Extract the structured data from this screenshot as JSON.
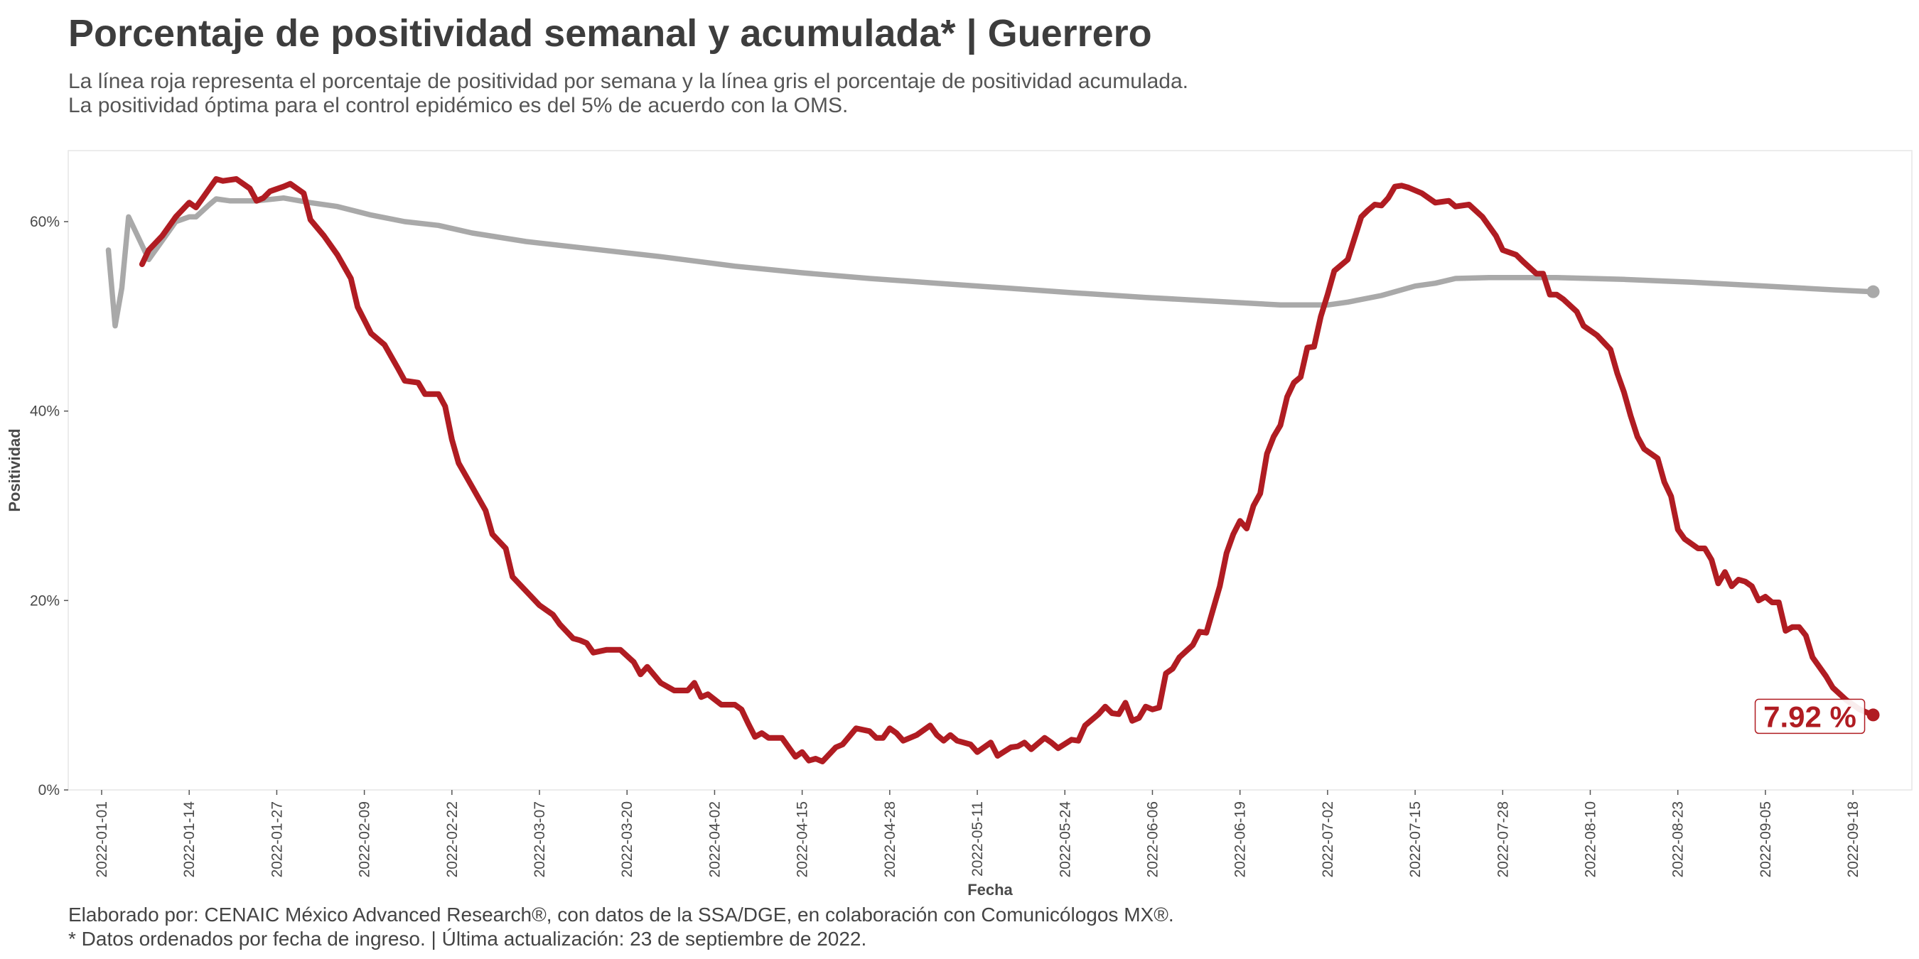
{
  "header": {
    "title": "Porcentaje de positividad semanal y acumulada* | Guerrero",
    "subtitle_line1": "La línea roja representa el porcentaje de positividad por semana y la línea gris el porcentaje de positividad acumulada.",
    "subtitle_line2": "La positividad óptima para el control epidémico es del 5% de acuerdo con la OMS."
  },
  "footer": {
    "caption_line1": "Elaborado por: CENAIC México Advanced Research®, con datos de la SSA/DGE, en colaboración con Comunicólogos MX®.",
    "caption_line2": "* Datos ordenados por fecha de ingreso. | Última actualización: 23 de septiembre de 2022."
  },
  "chart_data": {
    "type": "line",
    "title": "Porcentaje de positividad semanal y acumulada* | Guerrero",
    "xlabel": "Fecha",
    "ylabel": "Positividad",
    "x_start": "2022-01-01",
    "x_end": "2022-09-22",
    "ylim": [
      0,
      0.675
    ],
    "x_ticks": [
      "2022-01-01",
      "2022-01-14",
      "2022-01-27",
      "2022-02-09",
      "2022-02-22",
      "2022-03-07",
      "2022-03-20",
      "2022-04-02",
      "2022-04-15",
      "2022-04-28",
      "2022-05-11",
      "2022-05-24",
      "2022-06-06",
      "2022-06-19",
      "2022-07-02",
      "2022-07-15",
      "2022-07-28",
      "2022-08-10",
      "2022-08-23",
      "2022-09-05",
      "2022-09-18"
    ],
    "y_ticks": [
      {
        "value": 0,
        "label": "0%"
      },
      {
        "value": 0.2,
        "label": "20%"
      },
      {
        "value": 0.4,
        "label": "40%"
      },
      {
        "value": 0.6,
        "label": "60%"
      }
    ],
    "grid": false,
    "series": [
      {
        "role": "semanal",
        "color": "#b01c22",
        "points": [
          [
            "2022-01-07",
            0.555
          ],
          [
            "2022-01-08",
            0.57
          ],
          [
            "2022-01-10",
            0.585
          ],
          [
            "2022-01-12",
            0.605
          ],
          [
            "2022-01-14",
            0.62
          ],
          [
            "2022-01-15",
            0.615
          ],
          [
            "2022-01-16",
            0.625
          ],
          [
            "2022-01-18",
            0.645
          ],
          [
            "2022-01-19",
            0.643
          ],
          [
            "2022-01-20",
            0.644
          ],
          [
            "2022-01-21",
            0.645
          ],
          [
            "2022-01-23",
            0.635
          ],
          [
            "2022-01-24",
            0.622
          ],
          [
            "2022-01-25",
            0.625
          ],
          [
            "2022-01-26",
            0.632
          ],
          [
            "2022-01-28",
            0.637
          ],
          [
            "2022-01-29",
            0.64
          ],
          [
            "2022-01-31",
            0.63
          ],
          [
            "2022-02-01",
            0.602
          ],
          [
            "2022-02-03",
            0.585
          ],
          [
            "2022-02-05",
            0.565
          ],
          [
            "2022-02-07",
            0.54
          ],
          [
            "2022-02-08",
            0.51
          ],
          [
            "2022-02-10",
            0.482
          ],
          [
            "2022-02-12",
            0.47
          ],
          [
            "2022-02-14",
            0.445
          ],
          [
            "2022-02-15",
            0.432
          ],
          [
            "2022-02-17",
            0.43
          ],
          [
            "2022-02-18",
            0.418
          ],
          [
            "2022-02-20",
            0.418
          ],
          [
            "2022-02-21",
            0.405
          ],
          [
            "2022-02-22",
            0.37
          ],
          [
            "2022-02-23",
            0.345
          ],
          [
            "2022-02-25",
            0.32
          ],
          [
            "2022-02-27",
            0.295
          ],
          [
            "2022-02-28",
            0.27
          ],
          [
            "2022-03-02",
            0.255
          ],
          [
            "2022-03-03",
            0.225
          ],
          [
            "2022-03-05",
            0.21
          ],
          [
            "2022-03-07",
            0.195
          ],
          [
            "2022-03-09",
            0.185
          ],
          [
            "2022-03-10",
            0.175
          ],
          [
            "2022-03-12",
            0.16
          ],
          [
            "2022-03-13",
            0.158
          ],
          [
            "2022-03-14",
            0.155
          ],
          [
            "2022-03-15",
            0.145
          ],
          [
            "2022-03-17",
            0.148
          ],
          [
            "2022-03-19",
            0.148
          ],
          [
            "2022-03-21",
            0.135
          ],
          [
            "2022-03-22",
            0.122
          ],
          [
            "2022-03-23",
            0.13
          ],
          [
            "2022-03-25",
            0.113
          ],
          [
            "2022-03-27",
            0.105
          ],
          [
            "2022-03-29",
            0.105
          ],
          [
            "2022-03-30",
            0.113
          ],
          [
            "2022-03-31",
            0.098
          ],
          [
            "2022-04-01",
            0.101
          ],
          [
            "2022-04-03",
            0.09
          ],
          [
            "2022-04-05",
            0.09
          ],
          [
            "2022-04-06",
            0.085
          ],
          [
            "2022-04-07",
            0.07
          ],
          [
            "2022-04-08",
            0.056
          ],
          [
            "2022-04-09",
            0.06
          ],
          [
            "2022-04-10",
            0.055
          ],
          [
            "2022-04-12",
            0.055
          ],
          [
            "2022-04-14",
            0.035
          ],
          [
            "2022-04-15",
            0.04
          ],
          [
            "2022-04-16",
            0.031
          ],
          [
            "2022-04-17",
            0.033
          ],
          [
            "2022-04-18",
            0.03
          ],
          [
            "2022-04-20",
            0.045
          ],
          [
            "2022-04-21",
            0.048
          ],
          [
            "2022-04-23",
            0.065
          ],
          [
            "2022-04-25",
            0.062
          ],
          [
            "2022-04-26",
            0.055
          ],
          [
            "2022-04-27",
            0.055
          ],
          [
            "2022-04-28",
            0.065
          ],
          [
            "2022-04-29",
            0.06
          ],
          [
            "2022-04-30",
            0.052
          ],
          [
            "2022-05-02",
            0.058
          ],
          [
            "2022-05-04",
            0.068
          ],
          [
            "2022-05-05",
            0.058
          ],
          [
            "2022-05-06",
            0.052
          ],
          [
            "2022-05-07",
            0.058
          ],
          [
            "2022-05-08",
            0.052
          ],
          [
            "2022-05-10",
            0.048
          ],
          [
            "2022-05-11",
            0.04
          ],
          [
            "2022-05-13",
            0.05
          ],
          [
            "2022-05-14",
            0.036
          ],
          [
            "2022-05-16",
            0.045
          ],
          [
            "2022-05-17",
            0.046
          ],
          [
            "2022-05-18",
            0.05
          ],
          [
            "2022-05-19",
            0.043
          ],
          [
            "2022-05-21",
            0.055
          ],
          [
            "2022-05-22",
            0.05
          ],
          [
            "2022-05-23",
            0.044
          ],
          [
            "2022-05-25",
            0.053
          ],
          [
            "2022-05-26",
            0.052
          ],
          [
            "2022-05-27",
            0.068
          ],
          [
            "2022-05-29",
            0.08
          ],
          [
            "2022-05-30",
            0.088
          ],
          [
            "2022-05-31",
            0.081
          ],
          [
            "2022-06-01",
            0.08
          ],
          [
            "2022-06-02",
            0.092
          ],
          [
            "2022-06-03",
            0.073
          ],
          [
            "2022-06-04",
            0.076
          ],
          [
            "2022-06-05",
            0.088
          ],
          [
            "2022-06-06",
            0.085
          ],
          [
            "2022-06-07",
            0.087
          ],
          [
            "2022-06-08",
            0.123
          ],
          [
            "2022-06-09",
            0.128
          ],
          [
            "2022-06-10",
            0.14
          ],
          [
            "2022-06-12",
            0.153
          ],
          [
            "2022-06-13",
            0.167
          ],
          [
            "2022-06-14",
            0.166
          ],
          [
            "2022-06-16",
            0.215
          ],
          [
            "2022-06-17",
            0.25
          ],
          [
            "2022-06-18",
            0.27
          ],
          [
            "2022-06-19",
            0.284
          ],
          [
            "2022-06-20",
            0.276
          ],
          [
            "2022-06-21",
            0.3
          ],
          [
            "2022-06-22",
            0.313
          ],
          [
            "2022-06-23",
            0.355
          ],
          [
            "2022-06-24",
            0.373
          ],
          [
            "2022-06-25",
            0.385
          ],
          [
            "2022-06-26",
            0.415
          ],
          [
            "2022-06-27",
            0.43
          ],
          [
            "2022-06-28",
            0.436
          ],
          [
            "2022-06-29",
            0.467
          ],
          [
            "2022-06-30",
            0.468
          ],
          [
            "2022-07-01",
            0.5
          ],
          [
            "2022-07-02",
            0.523
          ],
          [
            "2022-07-03",
            0.548
          ],
          [
            "2022-07-05",
            0.56
          ],
          [
            "2022-07-07",
            0.605
          ],
          [
            "2022-07-08",
            0.612
          ],
          [
            "2022-07-09",
            0.618
          ],
          [
            "2022-07-10",
            0.617
          ],
          [
            "2022-07-11",
            0.625
          ],
          [
            "2022-07-12",
            0.637
          ],
          [
            "2022-07-13",
            0.638
          ],
          [
            "2022-07-14",
            0.636
          ],
          [
            "2022-07-16",
            0.63
          ],
          [
            "2022-07-18",
            0.62
          ],
          [
            "2022-07-20",
            0.622
          ],
          [
            "2022-07-21",
            0.616
          ],
          [
            "2022-07-23",
            0.618
          ],
          [
            "2022-07-25",
            0.605
          ],
          [
            "2022-07-27",
            0.585
          ],
          [
            "2022-07-28",
            0.57
          ],
          [
            "2022-07-30",
            0.565
          ],
          [
            "2022-07-31",
            0.558
          ],
          [
            "2022-08-02",
            0.545
          ],
          [
            "2022-08-03",
            0.545
          ],
          [
            "2022-08-04",
            0.523
          ],
          [
            "2022-08-05",
            0.523
          ],
          [
            "2022-08-06",
            0.518
          ],
          [
            "2022-08-08",
            0.505
          ],
          [
            "2022-08-09",
            0.49
          ],
          [
            "2022-08-11",
            0.48
          ],
          [
            "2022-08-13",
            0.465
          ],
          [
            "2022-08-14",
            0.44
          ],
          [
            "2022-08-15",
            0.42
          ],
          [
            "2022-08-16",
            0.395
          ],
          [
            "2022-08-17",
            0.373
          ],
          [
            "2022-08-18",
            0.36
          ],
          [
            "2022-08-20",
            0.35
          ],
          [
            "2022-08-21",
            0.325
          ],
          [
            "2022-08-22",
            0.31
          ],
          [
            "2022-08-23",
            0.275
          ],
          [
            "2022-08-24",
            0.265
          ],
          [
            "2022-08-26",
            0.255
          ],
          [
            "2022-08-27",
            0.255
          ],
          [
            "2022-08-28",
            0.243
          ],
          [
            "2022-08-29",
            0.218
          ],
          [
            "2022-08-30",
            0.23
          ],
          [
            "2022-08-31",
            0.215
          ],
          [
            "2022-09-01",
            0.222
          ],
          [
            "2022-09-02",
            0.22
          ],
          [
            "2022-09-03",
            0.215
          ],
          [
            "2022-09-04",
            0.2
          ],
          [
            "2022-09-05",
            0.204
          ],
          [
            "2022-09-06",
            0.198
          ],
          [
            "2022-09-07",
            0.198
          ],
          [
            "2022-09-08",
            0.168
          ],
          [
            "2022-09-09",
            0.172
          ],
          [
            "2022-09-10",
            0.172
          ],
          [
            "2022-09-11",
            0.163
          ],
          [
            "2022-09-12",
            0.14
          ],
          [
            "2022-09-14",
            0.12
          ],
          [
            "2022-09-15",
            0.108
          ],
          [
            "2022-09-17",
            0.095
          ],
          [
            "2022-09-18",
            0.09
          ],
          [
            "2022-09-19",
            0.085
          ],
          [
            "2022-09-20",
            0.082
          ],
          [
            "2022-09-21",
            0.0792
          ]
        ]
      },
      {
        "role": "acumulada",
        "color": "#a9a9a9",
        "points": [
          [
            "2022-01-02",
            0.57
          ],
          [
            "2022-01-03",
            0.49
          ],
          [
            "2022-01-04",
            0.53
          ],
          [
            "2022-01-05",
            0.605
          ],
          [
            "2022-01-06",
            0.59
          ],
          [
            "2022-01-08",
            0.56
          ],
          [
            "2022-01-10",
            0.58
          ],
          [
            "2022-01-12",
            0.6
          ],
          [
            "2022-01-14",
            0.605
          ],
          [
            "2022-01-15",
            0.605
          ],
          [
            "2022-01-17",
            0.618
          ],
          [
            "2022-01-18",
            0.624
          ],
          [
            "2022-01-20",
            0.622
          ],
          [
            "2022-01-24",
            0.622
          ],
          [
            "2022-01-28",
            0.625
          ],
          [
            "2022-02-01",
            0.62
          ],
          [
            "2022-02-05",
            0.616
          ],
          [
            "2022-02-10",
            0.607
          ],
          [
            "2022-02-15",
            0.6
          ],
          [
            "2022-02-20",
            0.596
          ],
          [
            "2022-02-25",
            0.588
          ],
          [
            "2022-03-05",
            0.579
          ],
          [
            "2022-03-15",
            0.571
          ],
          [
            "2022-03-25",
            0.563
          ],
          [
            "2022-04-05",
            0.553
          ],
          [
            "2022-04-15",
            0.546
          ],
          [
            "2022-04-25",
            0.54
          ],
          [
            "2022-05-05",
            0.535
          ],
          [
            "2022-05-15",
            0.53
          ],
          [
            "2022-05-25",
            0.525
          ],
          [
            "2022-06-05",
            0.52
          ],
          [
            "2022-06-15",
            0.516
          ],
          [
            "2022-06-25",
            0.512
          ],
          [
            "2022-07-02",
            0.512
          ],
          [
            "2022-07-05",
            0.515
          ],
          [
            "2022-07-10",
            0.522
          ],
          [
            "2022-07-15",
            0.532
          ],
          [
            "2022-07-18",
            0.535
          ],
          [
            "2022-07-21",
            0.54
          ],
          [
            "2022-07-26",
            0.541
          ],
          [
            "2022-08-05",
            0.541
          ],
          [
            "2022-08-15",
            0.539
          ],
          [
            "2022-08-25",
            0.536
          ],
          [
            "2022-09-05",
            0.532
          ],
          [
            "2022-09-15",
            0.528
          ],
          [
            "2022-09-21",
            0.526
          ]
        ]
      }
    ],
    "end_label": "7.92 %"
  }
}
